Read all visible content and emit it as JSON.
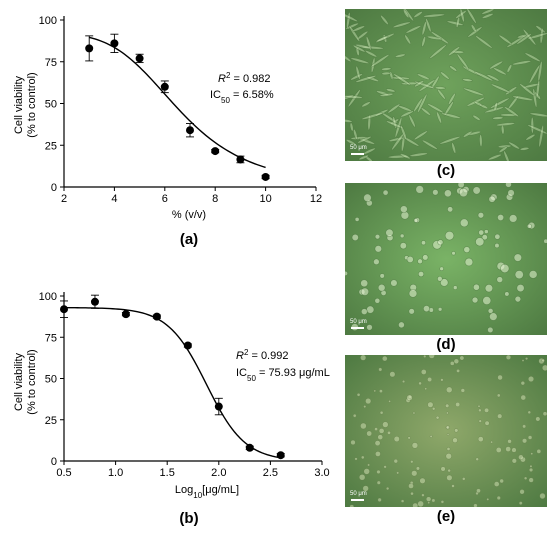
{
  "chart_data": [
    {
      "type": "scatter",
      "panel_label": "(a)",
      "xlabel": "% (v/v)",
      "ylabel_line1": "Cell viability",
      "ylabel_line2": "(% to control)",
      "xlim": [
        2,
        12
      ],
      "ylim": [
        0,
        100
      ],
      "xticks": [
        "2",
        "4",
        "6",
        "8",
        "10",
        "12"
      ],
      "yticks": [
        "0",
        "25",
        "50",
        "75",
        "100"
      ],
      "x": [
        3,
        4,
        5,
        6,
        7,
        8,
        9,
        10
      ],
      "y": [
        83,
        86,
        77,
        60,
        34,
        21.5,
        16.5,
        6
      ],
      "yerr": [
        7.5,
        5.5,
        2.5,
        3.5,
        4,
        1,
        2,
        1
      ],
      "fit": {
        "top": 92,
        "bottom": 0,
        "ic50": 6.58,
        "hill": 4.6,
        "x_range": [
          3,
          10
        ]
      },
      "annotation": {
        "r2_label": "R",
        "r2_sup": "2",
        "r2_value": " = 0.982",
        "ic_label": "IC",
        "ic_sub": "50",
        "ic_value": " = 6.58%"
      }
    },
    {
      "type": "scatter",
      "panel_label": "(b)",
      "xlabel": "Log",
      "xlabel_sub": "10",
      "xlabel_rest": "[μg/mL]",
      "ylabel_line1": "Cell viability",
      "ylabel_line2": "(% to control)",
      "xlim": [
        0.5,
        3.0
      ],
      "ylim": [
        0,
        100
      ],
      "xticks": [
        "0.5",
        "1.0",
        "1.5",
        "2.0",
        "2.5",
        "3.0"
      ],
      "yticks": [
        "0",
        "25",
        "50",
        "75",
        "100"
      ],
      "x": [
        0.5,
        0.8,
        1.1,
        1.4,
        1.7,
        2.0,
        2.3,
        2.6
      ],
      "y": [
        92,
        96.5,
        89,
        87.5,
        70,
        33,
        8,
        3.5
      ],
      "yerr": [
        5,
        4,
        1,
        1,
        1,
        5,
        1,
        1
      ],
      "fit": {
        "top": 93,
        "bottom": 0,
        "logic50": 1.88,
        "hill": 2.32,
        "x_range": [
          0.5,
          2.6
        ]
      },
      "annotation": {
        "r2_label": "R",
        "r2_sup": "2",
        "r2_value": " =   0.992",
        "ic_label": "IC",
        "ic_sub": "50",
        "ic_value": " = 75.93 μg/mL"
      }
    }
  ],
  "micrographs": [
    {
      "label": "(c)",
      "scale_text": "50 μm",
      "base_color": "#6fa25c",
      "texture": "elongated"
    },
    {
      "label": "(d)",
      "scale_text": "50 μm",
      "base_color": "#7ab366",
      "texture": "rounded"
    },
    {
      "label": "(e)",
      "scale_text": "50 μm",
      "base_color": "#8fa86a",
      "texture": "sparse"
    }
  ],
  "colors": {
    "axis": "#000000",
    "marker": "#000000",
    "curve": "#000000"
  }
}
